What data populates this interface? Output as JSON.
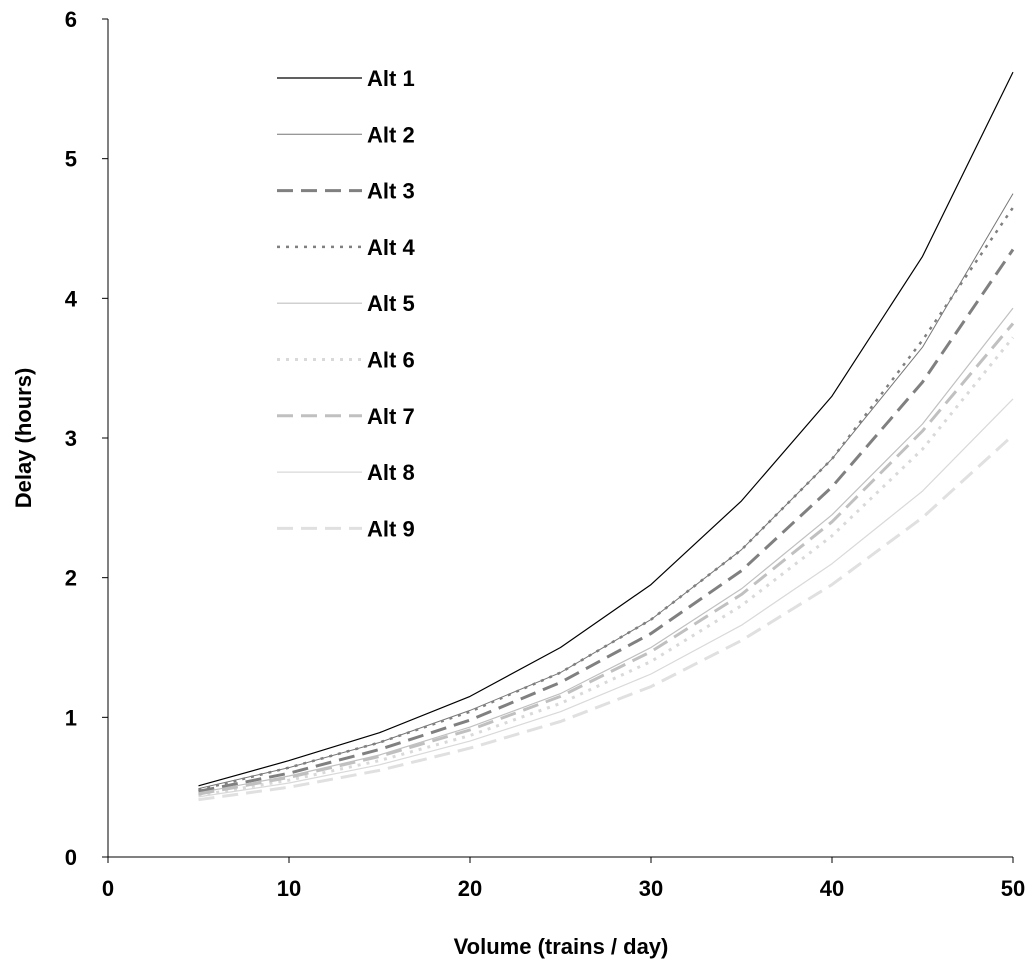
{
  "chart_data": {
    "type": "line",
    "xlabel": "Volume (trains / day)",
    "ylabel": "Delay (hours)",
    "xlim": [
      0,
      50
    ],
    "ylim": [
      0,
      6
    ],
    "xticks": [
      0,
      10,
      20,
      30,
      40,
      50
    ],
    "yticks": [
      0,
      1,
      2,
      3,
      4,
      5,
      6
    ],
    "grid": false,
    "legend_position": "top-left",
    "x": [
      5,
      10,
      15,
      20,
      25,
      30,
      35,
      40,
      45,
      50
    ],
    "series": [
      {
        "name": "Alt 1",
        "color": "#000000",
        "width": 1.2,
        "dash": "",
        "values": [
          0.51,
          0.69,
          0.89,
          1.15,
          1.5,
          1.95,
          2.55,
          3.3,
          4.3,
          5.62
        ]
      },
      {
        "name": "Alt 2",
        "color": "#777777",
        "width": 1.0,
        "dash": "",
        "values": [
          0.49,
          0.64,
          0.82,
          1.05,
          1.32,
          1.7,
          2.2,
          2.85,
          3.65,
          4.75
        ]
      },
      {
        "name": "Alt 3",
        "color": "#808080",
        "width": 3.0,
        "dash": "16 8",
        "values": [
          0.47,
          0.6,
          0.77,
          0.98,
          1.25,
          1.6,
          2.05,
          2.65,
          3.4,
          4.35
        ]
      },
      {
        "name": "Alt 4",
        "color": "#808080",
        "width": 2.5,
        "dash": "3 6",
        "values": [
          0.48,
          0.64,
          0.82,
          1.04,
          1.32,
          1.7,
          2.2,
          2.85,
          3.7,
          4.65
        ]
      },
      {
        "name": "Alt 5",
        "color": "#c0c0c0",
        "width": 1.2,
        "dash": "",
        "values": [
          0.46,
          0.58,
          0.73,
          0.93,
          1.17,
          1.5,
          1.92,
          2.45,
          3.1,
          3.93
        ]
      },
      {
        "name": "Alt 6",
        "color": "#d9d9d9",
        "width": 3.0,
        "dash": "3 6",
        "values": [
          0.44,
          0.55,
          0.69,
          0.87,
          1.1,
          1.4,
          1.8,
          2.3,
          2.92,
          3.72
        ]
      },
      {
        "name": "Alt 7",
        "color": "#c0c0c0",
        "width": 3.0,
        "dash": "16 8",
        "values": [
          0.45,
          0.57,
          0.72,
          0.91,
          1.15,
          1.47,
          1.88,
          2.4,
          3.05,
          3.82
        ]
      },
      {
        "name": "Alt 8",
        "color": "#d9d9d9",
        "width": 1.2,
        "dash": "",
        "values": [
          0.43,
          0.53,
          0.66,
          0.83,
          1.04,
          1.31,
          1.66,
          2.1,
          2.62,
          3.28
        ]
      },
      {
        "name": "Alt 9",
        "color": "#e0e0e0",
        "width": 3.0,
        "dash": "16 8",
        "values": [
          0.41,
          0.5,
          0.62,
          0.78,
          0.97,
          1.22,
          1.55,
          1.95,
          2.43,
          3.02
        ]
      }
    ]
  }
}
